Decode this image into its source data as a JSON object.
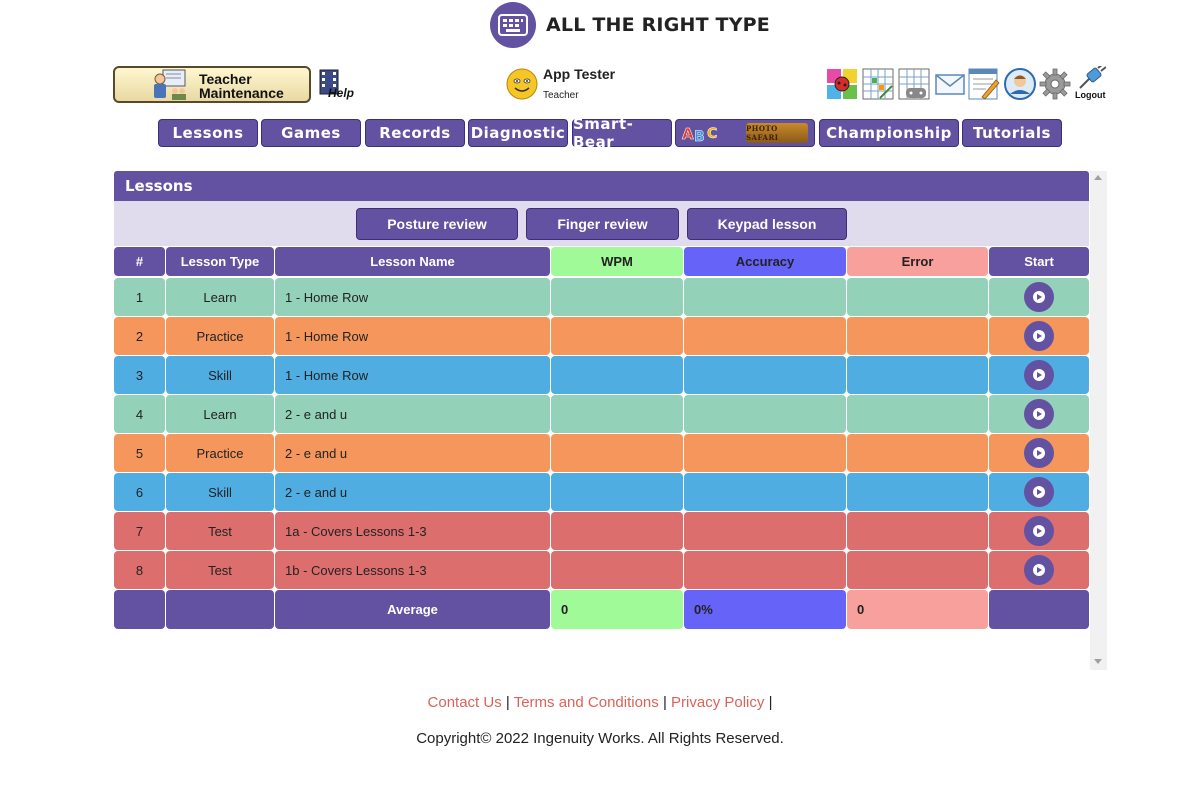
{
  "app": {
    "title": "ALL THE RIGHT TYPE"
  },
  "header": {
    "teacher_maintenance_line1": "Teacher",
    "teacher_maintenance_line2": "Maintenance",
    "help_label": "Help",
    "user_name": "App Tester",
    "user_role": "Teacher",
    "logout_label": "Logout"
  },
  "nav": {
    "tabs": [
      {
        "label": "Lessons"
      },
      {
        "label": "Games"
      },
      {
        "label": "Records"
      },
      {
        "label": "Diagnostic"
      },
      {
        "label": "Smart-Bear"
      },
      {
        "label": "Championship"
      },
      {
        "label": "Tutorials"
      }
    ],
    "photo_safari_label": "PHOTO SAFARI"
  },
  "panel": {
    "title": "Lessons",
    "buttons": [
      {
        "label": "Posture review"
      },
      {
        "label": "Finger review"
      },
      {
        "label": "Keypad lesson"
      }
    ]
  },
  "table": {
    "headers": [
      "#",
      "Lesson Type",
      "Lesson Name",
      "WPM",
      "Accuracy",
      "Error",
      "Start"
    ],
    "rows": [
      {
        "num": "1",
        "type": "Learn",
        "name": "1 - Home Row",
        "color": "#94d1b9"
      },
      {
        "num": "2",
        "type": "Practice",
        "name": "1 - Home Row",
        "color": "#f5975c"
      },
      {
        "num": "3",
        "type": "Skill",
        "name": "1 - Home Row",
        "color": "#4fade2"
      },
      {
        "num": "4",
        "type": "Learn",
        "name": "2 - e and u",
        "color": "#94d1b9"
      },
      {
        "num": "5",
        "type": "Practice",
        "name": "2 - e and u",
        "color": "#f5975c"
      },
      {
        "num": "6",
        "type": "Skill",
        "name": "2 - e and u",
        "color": "#4fade2"
      },
      {
        "num": "7",
        "type": "Test",
        "name": "1a - Covers Lessons 1-3",
        "color": "#dc6f6e"
      },
      {
        "num": "8",
        "type": "Test",
        "name": "1b - Covers Lessons 1-3",
        "color": "#dc6f6e"
      }
    ],
    "average_label": "Average",
    "average": {
      "wpm": "0",
      "accuracy": "0%",
      "error": "0"
    }
  },
  "colors": {
    "brand": "#6351a1",
    "wpm": "#a0fa98",
    "accuracy": "#6563f8",
    "error": "#f7a09c"
  },
  "footer": {
    "links": [
      "Contact Us",
      "Terms and Conditions",
      "Privacy Policy"
    ],
    "separator": "|",
    "copyright": "Copyright© 2022 Ingenuity Works. All Rights Reserved."
  }
}
